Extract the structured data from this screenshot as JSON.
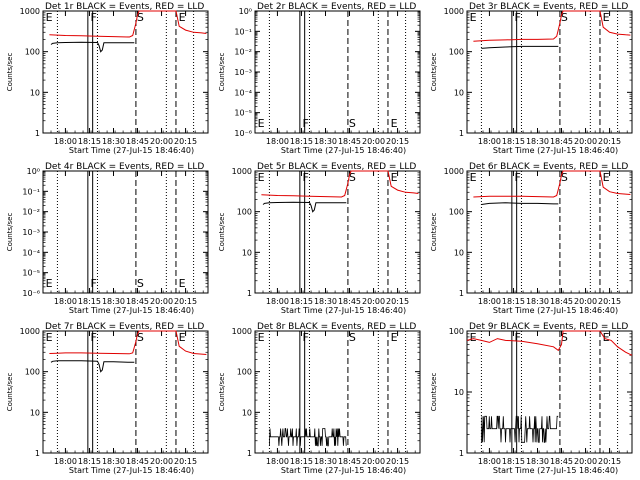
{
  "window": {
    "title": ""
  },
  "common": {
    "xlabel": "Start Time (27-Jul-15 18:46:40)",
    "ylabel": "Counts/sec",
    "x_ticks": [
      "18:00",
      "18:15",
      "18:30",
      "18:45",
      "20:00",
      "20:15"
    ],
    "x_tick_minutes": [
      0,
      15,
      30,
      45,
      60,
      75
    ],
    "markers": [
      "E",
      "F",
      "S",
      "E"
    ],
    "colors": {
      "events": "#000000",
      "lld": "#e00000",
      "axes": "#000000",
      "background": "#ffffff"
    }
  },
  "chart_data": [
    {
      "type": "line",
      "title": "Det 1r  BLACK = Events, RED = LLD",
      "xlabel": "Start Time (27-Jul-15 18:46:40)",
      "ylabel": "Counts/sec",
      "xlim_minutes": [
        -14,
        89
      ],
      "ylog": true,
      "ylim": [
        1,
        1000
      ],
      "y_ticks": [
        "1",
        "10",
        "100",
        "1000"
      ],
      "vlines": {
        "dotted": [
          -5,
          20,
          63,
          80
        ],
        "solid": [
          14,
          17
        ],
        "dashed": [
          44,
          69
        ]
      },
      "marker_positions": [
        -13,
        15,
        44,
        70
      ],
      "series": [
        {
          "color": "#e00000",
          "x": [
            -10,
            -5,
            0,
            10,
            20,
            30,
            40,
            42,
            44,
            45,
            46,
            69,
            71,
            75,
            80,
            85,
            88
          ],
          "y": [
            260,
            255,
            250,
            245,
            240,
            235,
            230,
            250,
            500,
            800,
            1000,
            1000,
            420,
            340,
            300,
            290,
            280
          ]
        },
        {
          "color": "#000000",
          "x": [
            -9,
            -8,
            -5,
            0,
            10,
            20,
            21,
            22,
            23,
            24,
            30,
            40,
            43
          ],
          "y": [
            150,
            160,
            165,
            168,
            170,
            168,
            140,
            100,
            110,
            165,
            165,
            165,
            165
          ]
        }
      ]
    },
    {
      "type": "line",
      "title": "Det 2r  BLACK = Events, RED = LLD",
      "xlabel": "Start Time (27-Jul-15 18:46:40)",
      "ylabel": "Counts/sec",
      "xlim_minutes": [
        -14,
        89
      ],
      "ylog": true,
      "ylim": [
        1e-06,
        1
      ],
      "y_ticks": [
        "10⁰",
        "10⁻¹",
        "10⁻²",
        "10⁻³",
        "10⁻⁴",
        "10⁻⁵",
        "10⁻⁶"
      ],
      "vlines": {
        "dotted": [
          -5,
          20,
          63,
          80
        ],
        "solid": [
          14,
          17
        ],
        "dashed": [
          44,
          69
        ]
      },
      "marker_positions": [
        -13,
        15,
        44,
        70
      ],
      "series": []
    },
    {
      "type": "line",
      "title": "Det 3r  BLACK = Events, RED = LLD",
      "xlabel": "Start Time (27-Jul-15 18:46:40)",
      "ylabel": "Counts/sec",
      "xlim_minutes": [
        -14,
        89
      ],
      "ylog": true,
      "ylim": [
        1,
        1000
      ],
      "y_ticks": [
        "1",
        "10",
        "100",
        "1000"
      ],
      "vlines": {
        "dotted": [
          -5,
          20,
          63,
          80
        ],
        "solid": [
          14,
          17
        ],
        "dashed": [
          44,
          69
        ]
      },
      "marker_positions": [
        -13,
        15,
        44,
        70
      ],
      "series": [
        {
          "color": "#e00000",
          "x": [
            -10,
            -5,
            0,
            10,
            20,
            30,
            40,
            42,
            44,
            45,
            46,
            69,
            71,
            75,
            80,
            85,
            88
          ],
          "y": [
            180,
            185,
            190,
            195,
            200,
            200,
            205,
            240,
            500,
            800,
            1000,
            1000,
            400,
            300,
            270,
            260,
            255
          ]
        },
        {
          "color": "#000000",
          "x": [
            -5,
            0,
            10,
            20,
            30,
            40,
            43
          ],
          "y": [
            120,
            125,
            130,
            135,
            135,
            135,
            135
          ]
        }
      ]
    },
    {
      "type": "line",
      "title": "Det 4r  BLACK = Events, RED = LLD",
      "xlabel": "Start Time (27-Jul-15 18:46:40)",
      "ylabel": "Counts/sec",
      "xlim_minutes": [
        -14,
        89
      ],
      "ylog": true,
      "ylim": [
        1e-06,
        1
      ],
      "y_ticks": [
        "10⁰",
        "10⁻¹",
        "10⁻²",
        "10⁻³",
        "10⁻⁴",
        "10⁻⁵",
        "10⁻⁶"
      ],
      "vlines": {
        "dotted": [
          -5,
          20,
          63,
          80
        ],
        "solid": [
          14,
          17
        ],
        "dashed": [
          44,
          69
        ]
      },
      "marker_positions": [
        -13,
        15,
        44,
        70
      ],
      "series": []
    },
    {
      "type": "line",
      "title": "Det 5r  BLACK = Events, RED = LLD",
      "xlabel": "Start Time (27-Jul-15 18:46:40)",
      "ylabel": "Counts/sec",
      "xlim_minutes": [
        -14,
        89
      ],
      "ylog": true,
      "ylim": [
        1,
        1000
      ],
      "y_ticks": [
        "1",
        "10",
        "100",
        "1000"
      ],
      "vlines": {
        "dotted": [
          -5,
          20,
          63,
          80
        ],
        "solid": [
          14,
          17
        ],
        "dashed": [
          44,
          69
        ]
      },
      "marker_positions": [
        -13,
        15,
        44,
        70
      ],
      "series": [
        {
          "color": "#e00000",
          "x": [
            -10,
            -5,
            0,
            10,
            20,
            30,
            40,
            42,
            44,
            45,
            46,
            69,
            71,
            75,
            80,
            85,
            88
          ],
          "y": [
            260,
            255,
            250,
            245,
            240,
            235,
            230,
            250,
            500,
            800,
            1000,
            1000,
            420,
            340,
            300,
            290,
            280
          ]
        },
        {
          "color": "#000000",
          "x": [
            -9,
            -8,
            -5,
            0,
            10,
            20,
            21,
            22,
            23,
            24,
            30,
            40,
            43
          ],
          "y": [
            150,
            160,
            165,
            168,
            170,
            168,
            140,
            100,
            110,
            165,
            165,
            165,
            165
          ]
        }
      ]
    },
    {
      "type": "line",
      "title": "Det 6r  BLACK = Events, RED = LLD",
      "xlabel": "Start Time (27-Jul-15 18:46:40)",
      "ylabel": "Counts/sec",
      "xlim_minutes": [
        -14,
        89
      ],
      "ylog": true,
      "ylim": [
        1,
        1000
      ],
      "y_ticks": [
        "1",
        "10",
        "100",
        "1000"
      ],
      "vlines": {
        "dotted": [
          -5,
          20,
          63,
          80
        ],
        "solid": [
          14,
          17
        ],
        "dashed": [
          44,
          69
        ]
      },
      "marker_positions": [
        -13,
        15,
        44,
        70
      ],
      "series": [
        {
          "color": "#e00000",
          "x": [
            -10,
            -5,
            0,
            10,
            20,
            30,
            40,
            42,
            44,
            45,
            46,
            69,
            71,
            75,
            80,
            85,
            88
          ],
          "y": [
            230,
            235,
            240,
            240,
            240,
            235,
            230,
            250,
            500,
            800,
            1000,
            1000,
            400,
            310,
            280,
            270,
            265
          ]
        },
        {
          "color": "#000000",
          "x": [
            -5,
            0,
            10,
            20,
            30,
            40,
            43
          ],
          "y": [
            150,
            160,
            165,
            160,
            160,
            155,
            155
          ]
        }
      ]
    },
    {
      "type": "line",
      "title": "Det 7r  BLACK = Events, RED = LLD",
      "xlabel": "Start Time (27-Jul-15 18:46:40)",
      "ylabel": "Counts/sec",
      "xlim_minutes": [
        -14,
        89
      ],
      "ylog": true,
      "ylim": [
        1,
        1000
      ],
      "y_ticks": [
        "1",
        "10",
        "100",
        "1000"
      ],
      "vlines": {
        "dotted": [
          -5,
          20,
          63,
          80
        ],
        "solid": [
          14,
          17
        ],
        "dashed": [
          44,
          69
        ]
      },
      "marker_positions": [
        -13,
        15,
        44,
        70
      ],
      "series": [
        {
          "color": "#e00000",
          "x": [
            -10,
            -5,
            0,
            10,
            20,
            30,
            40,
            42,
            44,
            45,
            46,
            69,
            71,
            75,
            80,
            85,
            88
          ],
          "y": [
            280,
            285,
            290,
            290,
            285,
            280,
            275,
            290,
            550,
            850,
            1000,
            1000,
            420,
            320,
            280,
            270,
            265
          ]
        },
        {
          "color": "#000000",
          "x": [
            -9,
            -8,
            -5,
            0,
            10,
            20,
            21,
            22,
            23,
            24,
            30,
            40,
            43
          ],
          "y": [
            170,
            180,
            185,
            185,
            185,
            180,
            150,
            100,
            110,
            175,
            175,
            170,
            170
          ]
        }
      ]
    },
    {
      "type": "line",
      "title": "Det 8r  BLACK = Events, RED = LLD",
      "xlabel": "Start Time (27-Jul-15 18:46:40)",
      "ylabel": "Counts/sec",
      "xlim_minutes": [
        -14,
        89
      ],
      "ylog": true,
      "ylim": [
        1,
        1000
      ],
      "y_ticks": [
        "1",
        "10",
        "100",
        "1000"
      ],
      "vlines": {
        "dotted": [
          -5,
          20,
          63,
          80
        ],
        "solid": [
          14,
          17
        ],
        "dashed": [
          44,
          69
        ]
      },
      "marker_positions": [
        -13,
        15,
        44,
        70
      ],
      "noise": {
        "color": "#000000",
        "x_range": [
          -5,
          43
        ],
        "low": 1.5,
        "base": 2.5,
        "high": 4
      },
      "series": []
    },
    {
      "type": "line",
      "title": "Det 9r  BLACK = Events, RED = LLD",
      "xlabel": "Start Time (27-Jul-15 18:46:40)",
      "ylabel": "Counts/sec",
      "xlim_minutes": [
        -14,
        89
      ],
      "ylog": true,
      "ylim": [
        1,
        100
      ],
      "y_ticks": [
        "1",
        "10",
        "100"
      ],
      "vlines": {
        "dotted": [
          -5,
          20,
          63,
          80
        ],
        "solid": [
          14,
          17
        ],
        "dashed": [
          44,
          69
        ]
      },
      "marker_positions": [
        -13,
        15,
        44,
        70
      ],
      "noise": {
        "color": "#000000",
        "x_range": [
          -5,
          43
        ],
        "low": 1.5,
        "base": 2.5,
        "high": 4
      },
      "series": [
        {
          "color": "#e00000",
          "x": [
            -14,
            -10,
            -5,
            0,
            5,
            10,
            20,
            30,
            40,
            43,
            45,
            46,
            69,
            72,
            76,
            80,
            85,
            89
          ],
          "y": [
            70,
            75,
            70,
            65,
            75,
            70,
            68,
            62,
            55,
            48,
            60,
            100,
            100,
            75,
            70,
            55,
            45,
            40
          ]
        }
      ]
    }
  ]
}
